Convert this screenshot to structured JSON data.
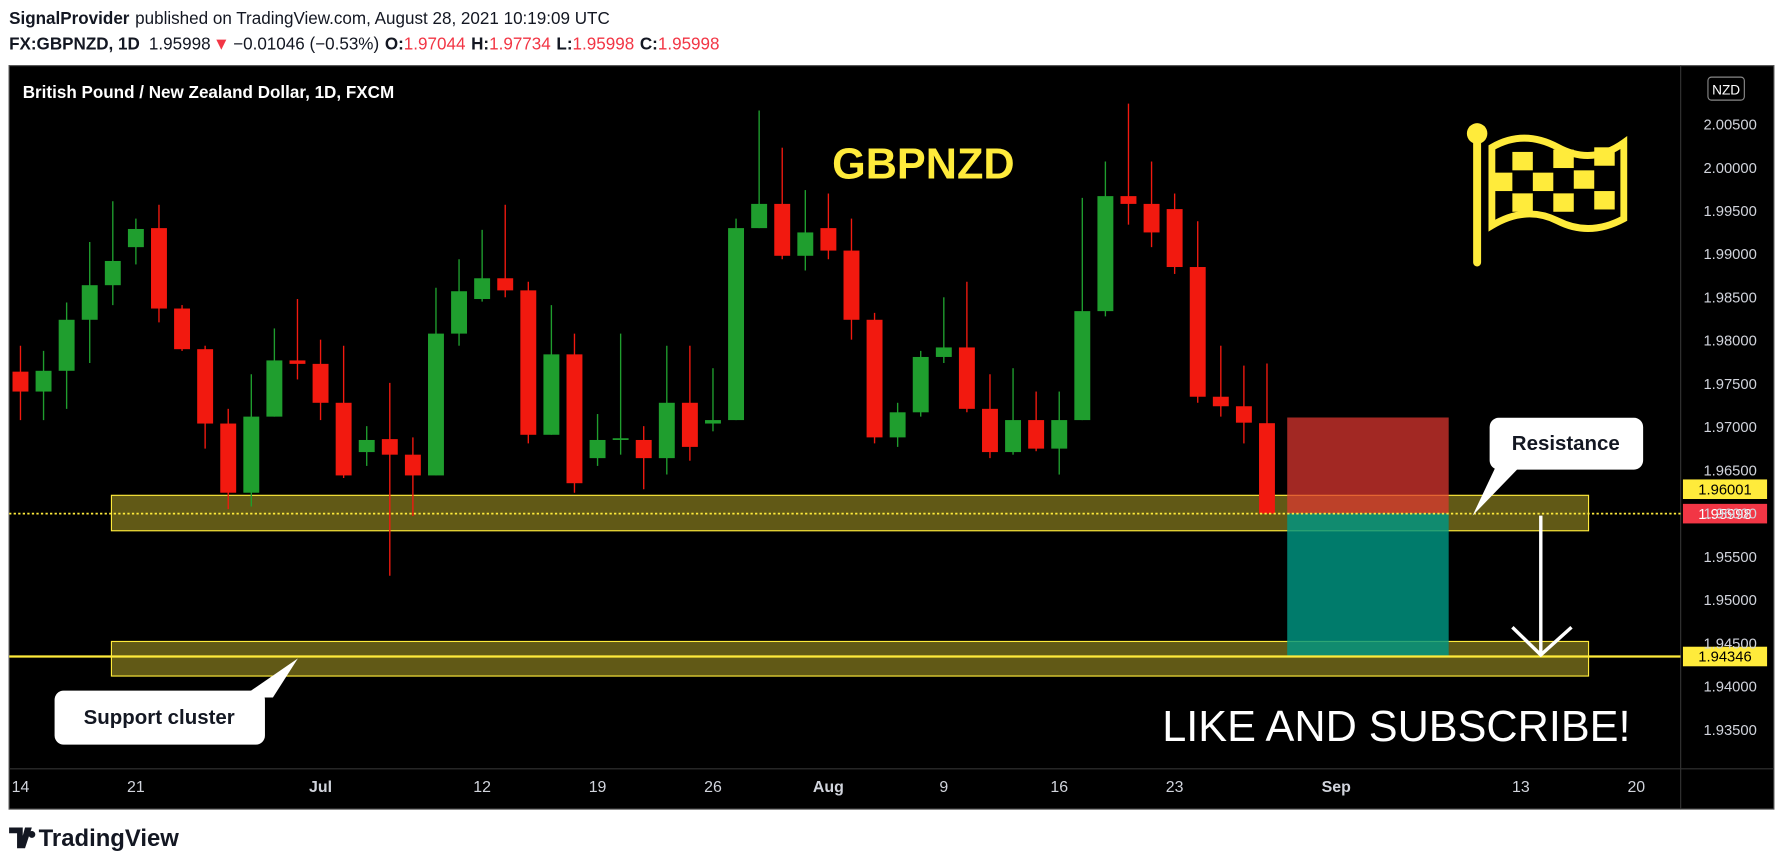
{
  "header": {
    "author": "SignalProvider",
    "published": "published on TradingView.com, August 28, 2021 10:19:09 UTC",
    "symbol": "FX:GBPNZD, 1D",
    "arrow": "▼",
    "change": "−0.01046 (−0.53%)",
    "o": "O:",
    "h": "H:",
    "l": "L:",
    "c": "C:"
  },
  "chart_data": {
    "type": "candlestick",
    "title": "GBPNZD",
    "legend_text": "British Pound / New Zealand Dollar, 1D, FXCM",
    "currency": "NZD",
    "categories": [
      "14",
      null,
      null,
      null,
      null,
      "21",
      null,
      null,
      null,
      null,
      null,
      null,
      null,
      "Jul",
      null,
      null,
      null,
      null,
      null,
      null,
      "12",
      null,
      null,
      null,
      null,
      "19",
      null,
      null,
      null,
      null,
      "26",
      null,
      null,
      null,
      null,
      "Aug",
      null,
      null,
      null,
      null,
      "9",
      null,
      null,
      null,
      null,
      "16",
      null,
      null,
      null,
      null,
      "23",
      null,
      null,
      null,
      null,
      null,
      null,
      "Sep",
      null,
      null,
      null,
      null,
      null,
      null,
      null,
      "13",
      null,
      null,
      null,
      null,
      "20",
      null
    ],
    "open": [
      1.9764,
      1.9741,
      1.9765,
      1.9824,
      1.9864,
      1.9908,
      1.993,
      1.9837,
      1.979,
      1.9704,
      1.9624,
      1.9712,
      1.9777,
      1.9773,
      1.9728,
      1.9671,
      1.9686,
      1.9668,
      1.9644,
      1.9808,
      1.9848,
      1.9872,
      1.9858,
      1.9691,
      1.9784,
      1.9664,
      1.9685,
      1.9685,
      1.9664,
      1.9728,
      1.9704,
      1.9708,
      1.993,
      1.9958,
      1.9898,
      1.993,
      1.9904,
      1.9824,
      1.9688,
      1.9717,
      1.9781,
      1.9792,
      1.9721,
      1.9671,
      1.9708,
      1.9675,
      1.9708,
      1.9834,
      1.9967,
      1.9958,
      1.9952,
      1.9885,
      1.9735,
      1.9724,
      1.97044,
      null,
      null,
      null,
      null,
      null,
      null,
      null,
      null,
      null,
      null,
      null,
      null,
      null,
      null,
      null,
      null,
      null
    ],
    "high": [
      1.9794,
      1.9788,
      1.9844,
      1.9914,
      1.9961,
      1.9941,
      1.9957,
      1.9841,
      1.9794,
      1.9721,
      1.9761,
      1.9814,
      1.9848,
      1.9801,
      1.9794,
      1.9701,
      1.9751,
      1.9688,
      1.9861,
      1.9894,
      1.9928,
      1.9957,
      1.9868,
      1.9841,
      1.9808,
      1.9715,
      1.9808,
      1.9701,
      1.9794,
      1.9794,
      1.9768,
      1.9941,
      2.0066,
      2.0023,
      1.9974,
      1.997,
      1.9941,
      1.9832,
      1.9728,
      1.9788,
      1.985,
      1.9868,
      1.9761,
      1.9768,
      1.9741,
      1.9741,
      1.9965,
      2.0007,
      2.0074,
      2.0007,
      1.997,
      1.9938,
      1.9794,
      1.9771,
      1.97734,
      null,
      null,
      null,
      null,
      null,
      null,
      null,
      null,
      null,
      null,
      null,
      null,
      null,
      null,
      null,
      null,
      null
    ],
    "low": [
      1.9708,
      1.9708,
      1.9721,
      1.9774,
      1.9841,
      1.9888,
      1.9821,
      1.9788,
      1.9675,
      1.9605,
      1.9608,
      1.9712,
      1.9755,
      1.9708,
      1.9641,
      1.9655,
      1.9528,
      1.9597,
      1.9644,
      1.9794,
      1.9845,
      1.985,
      1.9681,
      1.9691,
      1.9624,
      1.9655,
      1.9668,
      1.9628,
      1.9645,
      1.9661,
      1.9695,
      1.9708,
      1.993,
      1.9894,
      1.9881,
      1.9894,
      1.9801,
      1.9681,
      1.9677,
      1.9712,
      1.9774,
      1.9717,
      1.9664,
      1.9668,
      1.9672,
      1.9645,
      1.9708,
      1.9828,
      1.9934,
      1.9908,
      1.9877,
      1.9728,
      1.9712,
      1.9681,
      1.95998,
      null,
      null,
      null,
      null,
      null,
      null,
      null,
      null,
      null,
      null,
      null,
      null,
      null,
      null,
      null,
      null,
      null
    ],
    "close": [
      1.9741,
      1.9765,
      1.9824,
      1.9864,
      1.9892,
      1.9929,
      1.9837,
      1.979,
      1.9704,
      1.9624,
      1.9712,
      1.9777,
      1.9773,
      1.9728,
      1.9644,
      1.9685,
      1.9668,
      1.9644,
      1.9808,
      1.9857,
      1.9872,
      1.9858,
      1.9691,
      1.9784,
      1.9635,
      1.9685,
      1.9687,
      1.9664,
      1.9728,
      1.9677,
      1.9708,
      1.993,
      1.9958,
      1.9898,
      1.9925,
      1.9904,
      1.9824,
      1.9688,
      1.9717,
      1.9781,
      1.9792,
      1.9721,
      1.9671,
      1.9708,
      1.9675,
      1.9708,
      1.9834,
      1.9967,
      1.9958,
      1.9925,
      1.9885,
      1.9735,
      1.9724,
      1.9705,
      1.95998,
      null,
      null,
      null,
      null,
      null,
      null,
      null,
      null,
      null,
      null,
      null,
      null,
      null,
      null,
      null,
      null,
      null
    ],
    "up_color": "#1f9e2e",
    "down_color": "#f2190f",
    "ylim": [
      1.93047,
      2.01166
    ],
    "yticks": [
      {
        "value": 1.935,
        "label": "1.93500"
      },
      {
        "value": 1.94,
        "label": "1.94000"
      },
      {
        "value": 1.945,
        "label": "1.94500"
      },
      {
        "value": 1.95,
        "label": "1.95000"
      },
      {
        "value": 1.955,
        "label": "1.95500"
      },
      {
        "value": 1.96,
        "label": "1.96000"
      },
      {
        "value": 1.965,
        "label": "1.96500"
      },
      {
        "value": 1.97,
        "label": "1.97000"
      },
      {
        "value": 1.975,
        "label": "1.97500"
      },
      {
        "value": 1.98,
        "label": "1.98000"
      },
      {
        "value": 1.985,
        "label": "1.98500"
      },
      {
        "value": 1.99,
        "label": "1.99000"
      },
      {
        "value": 1.995,
        "label": "1.99500"
      },
      {
        "value": 2,
        "label": "2.00000"
      },
      {
        "value": 2.005,
        "label": "2.00500"
      }
    ],
    "grid": false,
    "price_lines": [
      {
        "value": 1.94346,
        "color": "#ffeb3b"
      }
    ],
    "zones": [
      {
        "top": 1.9621,
        "bottom": 1.958
      },
      {
        "top": 1.9452,
        "bottom": 1.9412
      }
    ],
    "position": {
      "entry": 1.96001,
      "stop": 1.9711,
      "target": 1.9435
    },
    "resistance_label": "Resistance",
    "support_label": "Support cluster",
    "cta": "LIKE AND SUBSCRIBE!"
  },
  "footer": {
    "brand": "TradingView"
  }
}
